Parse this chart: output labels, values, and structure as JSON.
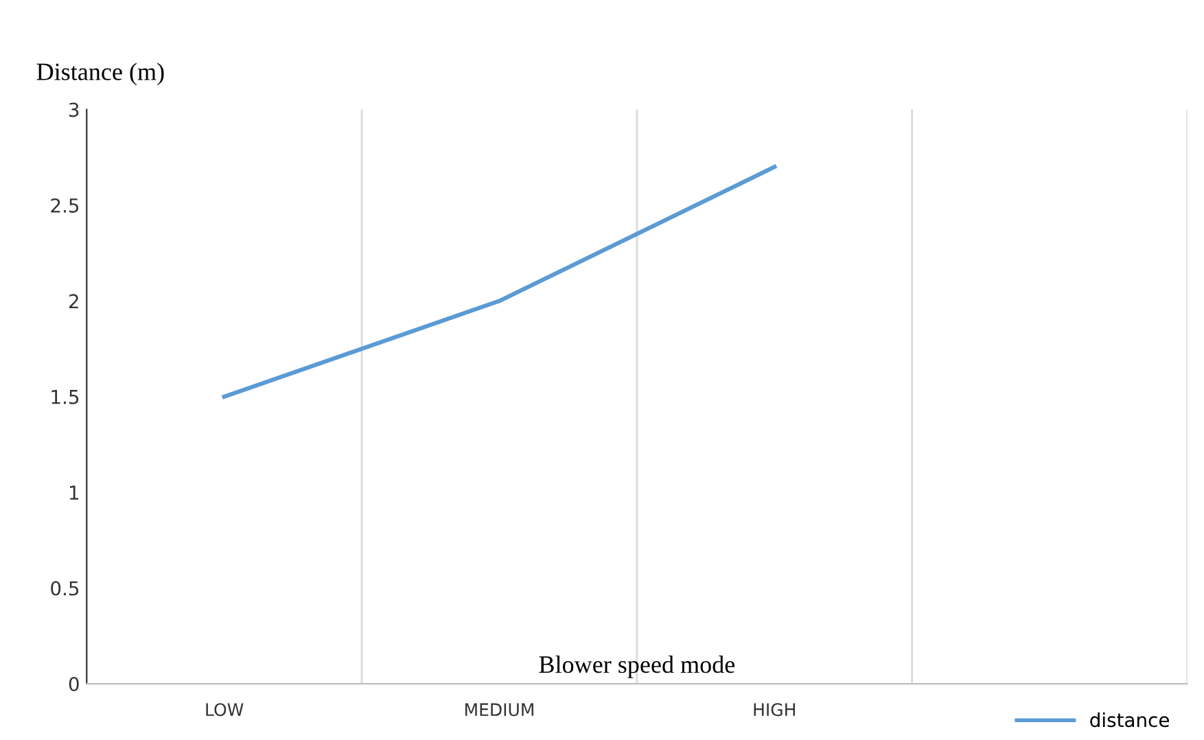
{
  "chart_data": {
    "type": "line",
    "xlabel": "Blower speed mode",
    "ylabel": "Distance (m)",
    "categories": [
      "LOW",
      "MEDIUM",
      "HIGH",
      null
    ],
    "series": [
      {
        "name": "distance",
        "color": "#5b9bd5",
        "values": [
          1.5,
          2.0,
          2.7,
          null
        ]
      }
    ],
    "ylim": [
      0,
      3
    ],
    "yticks": [
      0,
      0.5,
      1,
      1.5,
      2,
      2.5,
      3
    ],
    "grid": "x",
    "legend": "bottom right",
    "marker": "none",
    "line_style": "solid"
  }
}
